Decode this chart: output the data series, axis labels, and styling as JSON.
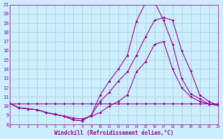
{
  "xlabel": "Windchill (Refroidissement éolien,°C)",
  "xlim": [
    0,
    23
  ],
  "ylim": [
    8,
    21
  ],
  "xticks": [
    0,
    1,
    2,
    3,
    4,
    5,
    6,
    7,
    8,
    9,
    10,
    11,
    12,
    13,
    14,
    15,
    16,
    17,
    18,
    19,
    20,
    21,
    22,
    23
  ],
  "yticks": [
    8,
    9,
    10,
    11,
    12,
    13,
    14,
    15,
    16,
    17,
    18,
    19,
    20,
    21
  ],
  "bg_color": "#cceeff",
  "grid_color": "#aacccc",
  "line_color": "#990099",
  "line1_x": [
    0,
    1,
    2,
    3,
    4,
    5,
    6,
    7,
    8,
    9,
    10,
    11,
    12,
    13,
    14,
    15,
    16,
    17,
    18,
    19,
    20,
    21,
    22,
    23
  ],
  "line1_y": [
    10.3,
    10.3,
    10.3,
    10.3,
    10.3,
    10.3,
    10.3,
    10.3,
    10.3,
    10.3,
    10.3,
    10.3,
    10.3,
    10.3,
    10.3,
    10.3,
    10.3,
    10.3,
    10.3,
    10.3,
    10.3,
    10.3,
    10.3,
    10.3
  ],
  "line2_x": [
    0,
    1,
    2,
    3,
    4,
    5,
    6,
    7,
    8,
    9,
    10,
    11,
    12,
    13,
    14,
    15,
    16,
    17,
    18,
    19,
    20,
    21,
    22,
    23
  ],
  "line2_y": [
    10.3,
    9.8,
    9.7,
    9.6,
    9.3,
    9.1,
    8.9,
    8.7,
    8.6,
    8.9,
    9.3,
    10.0,
    10.5,
    11.2,
    13.7,
    14.8,
    16.7,
    17.0,
    14.0,
    12.0,
    11.0,
    10.5,
    10.2,
    10.1
  ],
  "line3_x": [
    0,
    1,
    2,
    3,
    4,
    5,
    6,
    7,
    8,
    9,
    10,
    11,
    12,
    13,
    14,
    15,
    16,
    17,
    18,
    19,
    20,
    21,
    22,
    23
  ],
  "line3_y": [
    10.3,
    9.8,
    9.7,
    9.6,
    9.3,
    9.1,
    8.9,
    8.5,
    8.4,
    9.0,
    10.5,
    11.5,
    12.7,
    13.7,
    15.5,
    17.5,
    19.3,
    19.6,
    19.3,
    16.0,
    13.8,
    11.2,
    10.5,
    10.1
  ],
  "line4_x": [
    0,
    1,
    2,
    3,
    4,
    5,
    6,
    7,
    8,
    9,
    10,
    11,
    12,
    13,
    14,
    15,
    16,
    17,
    18,
    19,
    20,
    21,
    22,
    23
  ],
  "line4_y": [
    10.3,
    9.8,
    9.7,
    9.6,
    9.3,
    9.1,
    8.9,
    8.5,
    8.4,
    9.0,
    11.2,
    12.7,
    14.0,
    15.5,
    19.2,
    21.2,
    21.3,
    19.3,
    16.7,
    13.0,
    11.3,
    10.8,
    10.2,
    10.1
  ]
}
